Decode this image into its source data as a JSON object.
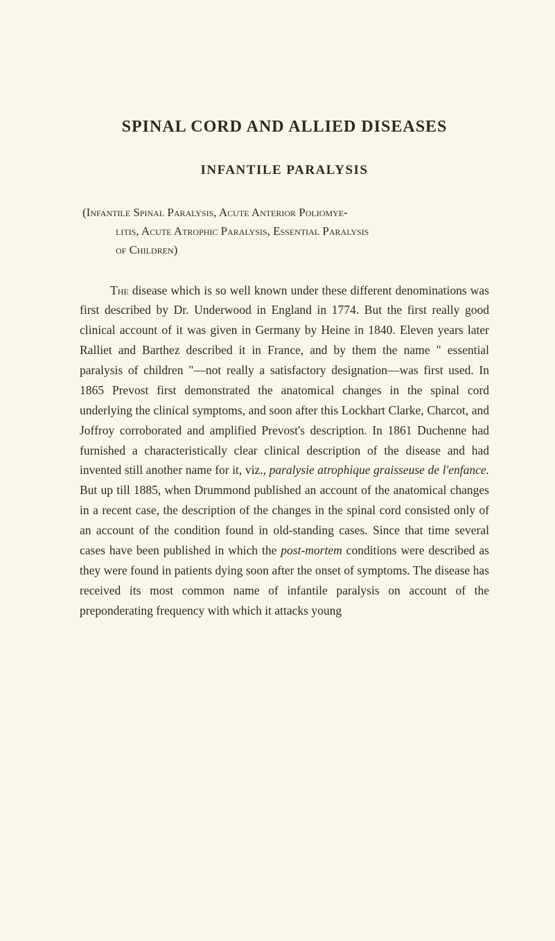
{
  "main_title": "SPINAL CORD AND ALLIED DISEASES",
  "subtitle": "INFANTILE PARALYSIS",
  "synonyms_line1": "(Infantile Spinal Paralysis, Acute Anterior Poliomye-",
  "synonyms_line2": "litis, Acute Atrophic Paralysis, Essential Paralysis",
  "synonyms_line3": "of Children)",
  "body_first_word": "The",
  "body_part1": " disease which is so well known under these different denominations was first described by Dr. Underwood in England in 1774. But the first really good clinical account of it was given in Germany by Heine in 1840. Eleven years later Ralliet and Barthez described it in France, and by them the name \" essential paralysis of children \"—not really a satisfactory designation—was first used. In 1865 Prevost first demonstrated the anatomical changes in the spinal cord underlying the clinical symptoms, and soon after this Lockhart Clarke, Charcot, and Joffroy corroborated and amplified Prevost's description. In 1861 Duchenne had furnished a characteristically clear clinical description of the disease and had invented still another name for it, viz., ",
  "body_italic1": "paralysie atrophique graisseuse de l'enfance.",
  "body_part2": " But up till 1885, when Drummond published an account of the anatomical changes in a recent case, the description of the changes in the spinal cord consisted only of an account of the condition found in old-standing cases. Since that time several cases have been published in which the ",
  "body_italic2": "post-mortem",
  "body_part3": " conditions were described as they were found in patients dying soon after the onset of symptoms. The disease has received its most common name of infantile paralysis on account of the preponderating frequency with which it attacks young"
}
